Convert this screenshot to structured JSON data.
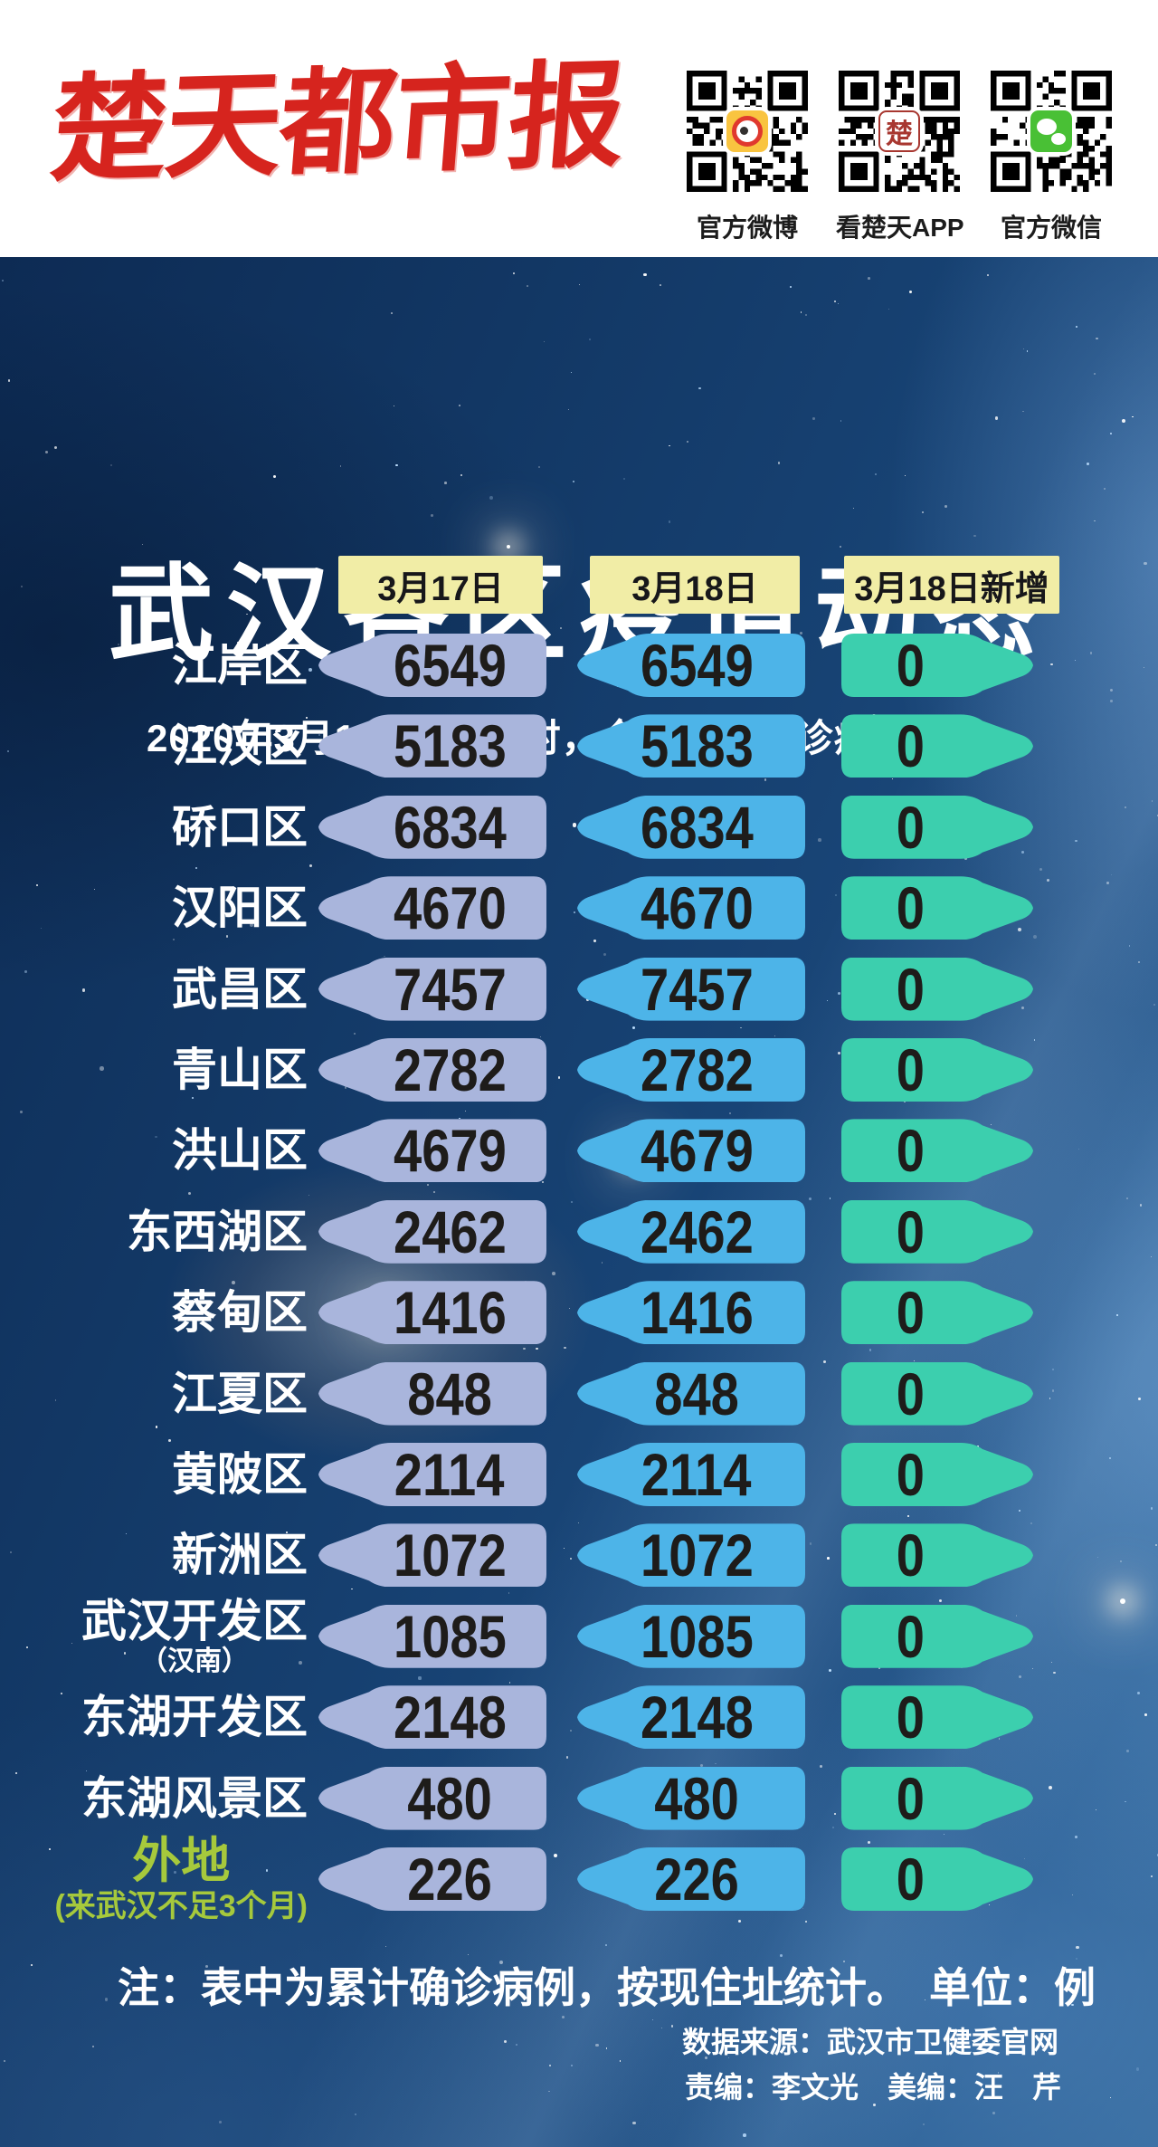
{
  "masthead": {
    "logo": "楚天都市报",
    "qr_codes": [
      {
        "label": "官方微博",
        "icon": "weibo-icon"
      },
      {
        "label": "看楚天APP",
        "icon": "chutian-seal-icon",
        "icon_text": "楚"
      },
      {
        "label": "官方微信",
        "icon": "wechat-icon"
      }
    ]
  },
  "title": "武汉各区疫情动态",
  "subtitle": "2020年3月18日0—24时，全市新增确诊病例0例。",
  "table": {
    "columns": [
      "3月17日",
      "3月18日",
      "3月18日新增"
    ],
    "rows": [
      {
        "district": "江岸区",
        "sub": "",
        "mar17": "6549",
        "mar18": "6549",
        "new_cases": "0"
      },
      {
        "district": "江汉区",
        "sub": "",
        "mar17": "5183",
        "mar18": "5183",
        "new_cases": "0"
      },
      {
        "district": "硚口区",
        "sub": "",
        "mar17": "6834",
        "mar18": "6834",
        "new_cases": "0"
      },
      {
        "district": "汉阳区",
        "sub": "",
        "mar17": "4670",
        "mar18": "4670",
        "new_cases": "0"
      },
      {
        "district": "武昌区",
        "sub": "",
        "mar17": "7457",
        "mar18": "7457",
        "new_cases": "0"
      },
      {
        "district": "青山区",
        "sub": "",
        "mar17": "2782",
        "mar18": "2782",
        "new_cases": "0"
      },
      {
        "district": "洪山区",
        "sub": "",
        "mar17": "4679",
        "mar18": "4679",
        "new_cases": "0"
      },
      {
        "district": "东西湖区",
        "sub": "",
        "mar17": "2462",
        "mar18": "2462",
        "new_cases": "0"
      },
      {
        "district": "蔡甸区",
        "sub": "",
        "mar17": "1416",
        "mar18": "1416",
        "new_cases": "0"
      },
      {
        "district": "江夏区",
        "sub": "",
        "mar17": "848",
        "mar18": "848",
        "new_cases": "0"
      },
      {
        "district": "黄陂区",
        "sub": "",
        "mar17": "2114",
        "mar18": "2114",
        "new_cases": "0"
      },
      {
        "district": "新洲区",
        "sub": "",
        "mar17": "1072",
        "mar18": "1072",
        "new_cases": "0"
      },
      {
        "district": "武汉开发区",
        "sub": "（汉南）",
        "mar17": "1085",
        "mar18": "1085",
        "new_cases": "0"
      },
      {
        "district": "东湖开发区",
        "sub": "",
        "mar17": "2148",
        "mar18": "2148",
        "new_cases": "0"
      },
      {
        "district": "东湖风景区",
        "sub": "",
        "mar17": "480",
        "mar18": "480",
        "new_cases": "0"
      },
      {
        "district": "外地",
        "sub": "(来武汉不足3个月)",
        "mar17": "226",
        "mar18": "226",
        "new_cases": "0",
        "highlight": true
      }
    ]
  },
  "note": "注：表中为累计确诊病例，按现住址统计。　单位：例",
  "source": "数据来源：武汉市卫健委官网",
  "credits": "责编：李文光　美编：汪　芹",
  "colors": {
    "accent_red": "#d6241e",
    "header_yellow": "#f1eda6",
    "pill_mar17": "#a9b5dc",
    "pill_mar18": "#4db4e8",
    "pill_new": "#3ccfae",
    "highlight_green": "#a6c93c",
    "number_text": "#1e1c1a"
  },
  "chart_data": {
    "type": "table",
    "title": "武汉各区疫情动态",
    "subtitle": "2020年3月18日0—24时，全市新增确诊病例0例。",
    "unit": "例",
    "note": "表中为累计确诊病例，按现住址统计",
    "categories": [
      "江岸区",
      "江汉区",
      "硚口区",
      "汉阳区",
      "武昌区",
      "青山区",
      "洪山区",
      "东西湖区",
      "蔡甸区",
      "江夏区",
      "黄陂区",
      "新洲区",
      "武汉开发区（汉南）",
      "东湖开发区",
      "东湖风景区",
      "外地(来武汉不足3个月)"
    ],
    "series": [
      {
        "name": "3月17日",
        "values": [
          6549,
          5183,
          6834,
          4670,
          7457,
          2782,
          4679,
          2462,
          1416,
          848,
          2114,
          1072,
          1085,
          2148,
          480,
          226
        ]
      },
      {
        "name": "3月18日",
        "values": [
          6549,
          5183,
          6834,
          4670,
          7457,
          2782,
          4679,
          2462,
          1416,
          848,
          2114,
          1072,
          1085,
          2148,
          480,
          226
        ]
      },
      {
        "name": "3月18日新增",
        "values": [
          0,
          0,
          0,
          0,
          0,
          0,
          0,
          0,
          0,
          0,
          0,
          0,
          0,
          0,
          0,
          0
        ]
      }
    ]
  }
}
